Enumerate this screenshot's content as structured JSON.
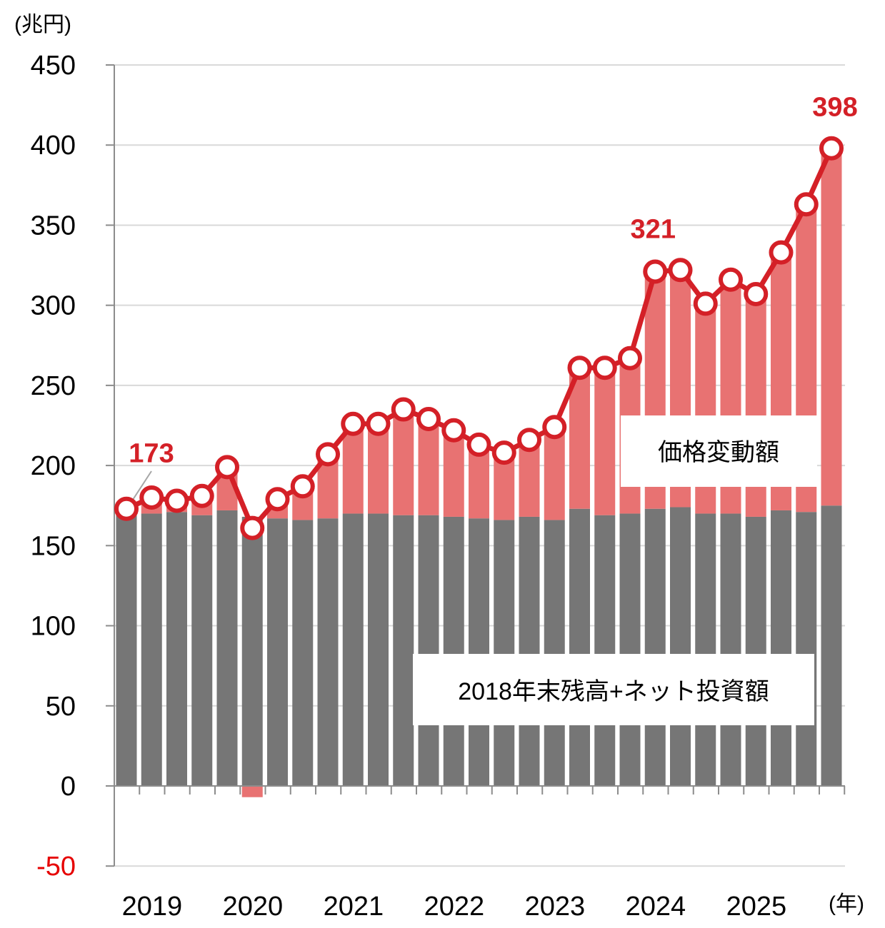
{
  "chart_data": {
    "type": "bar",
    "y_unit": "(兆円)",
    "x_unit": "(年)",
    "ylim": [
      -50,
      450
    ],
    "yticks": [
      450,
      400,
      350,
      300,
      250,
      200,
      150,
      100,
      50,
      0,
      -50
    ],
    "year_labels": [
      "2019",
      "2020",
      "2021",
      "2022",
      "2023",
      "2024",
      "2025"
    ],
    "bars_per_year": 4,
    "series": [
      {
        "name": "2018年末残高+ネット投資額",
        "color": "#767676",
        "values": [
          170,
          170,
          171,
          169,
          172,
          168,
          167,
          166,
          167,
          170,
          170,
          169,
          169,
          168,
          167,
          166,
          168,
          166,
          173,
          169,
          170,
          173,
          174,
          170,
          170,
          168,
          172,
          171,
          175
        ]
      },
      {
        "name": "価格変動額",
        "color": "#e87272",
        "values": [
          3,
          10,
          7,
          12,
          27,
          -7,
          12,
          21,
          40,
          56,
          56,
          66,
          60,
          54,
          46,
          42,
          48,
          58,
          88,
          92,
          97,
          148,
          148,
          131,
          146,
          139,
          161,
          192,
          223
        ]
      }
    ],
    "total": {
      "color": "#d42027",
      "values": [
        173,
        180,
        178,
        181,
        199,
        161,
        179,
        187,
        207,
        226,
        226,
        235,
        229,
        222,
        213,
        208,
        216,
        224,
        261,
        261,
        267,
        321,
        322,
        301,
        316,
        307,
        333,
        363,
        398
      ]
    },
    "data_labels": [
      {
        "index": 0,
        "text": "173"
      },
      {
        "index": 21,
        "text": "321"
      },
      {
        "index": 28,
        "text": "398"
      }
    ]
  }
}
